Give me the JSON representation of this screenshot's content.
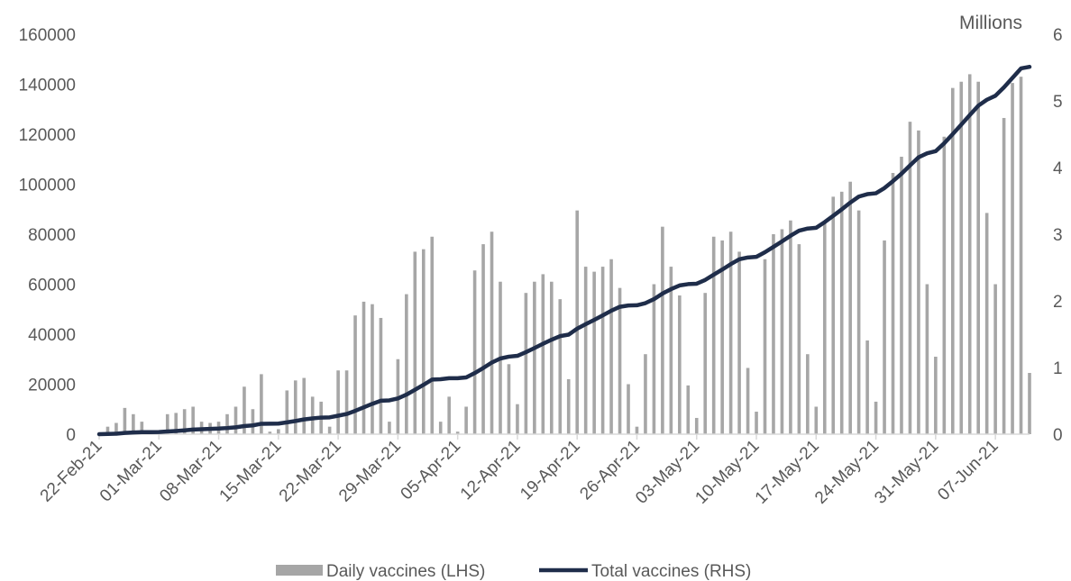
{
  "chart_data": {
    "type": "bar",
    "title": "",
    "xlabel": "",
    "ylabel": "",
    "y2label": "Millions",
    "ylim": [
      0,
      160000
    ],
    "y2lim": [
      0,
      6
    ],
    "yticks": [
      "0",
      "20000",
      "40000",
      "60000",
      "80000",
      "100000",
      "120000",
      "140000",
      "160000"
    ],
    "y2ticks": [
      "0",
      "1",
      "2",
      "3",
      "4",
      "5",
      "6"
    ],
    "xtick_labels": [
      "22-Feb-21",
      "01-Mar-21",
      "08-Mar-21",
      "15-Mar-21",
      "22-Mar-21",
      "29-Mar-21",
      "05-Apr-21",
      "12-Apr-21",
      "19-Apr-21",
      "26-Apr-21",
      "03-May-21",
      "10-May-21",
      "17-May-21",
      "24-May-21",
      "31-May-21",
      "07-Jun-21"
    ],
    "legend_position": "bottom",
    "grid": false,
    "colors": {
      "bar": "#a6a6a6",
      "line": "#1f2d4a",
      "text": "#595959",
      "axis": "#d9d9d9"
    },
    "series": [
      {
        "name": "Daily vaccines (LHS)",
        "type": "bar",
        "axis": "left",
        "start": "22-Feb-21",
        "values": [
          0,
          3000,
          4500,
          10500,
          8000,
          5000,
          0,
          1000,
          8000,
          8500,
          10000,
          11000,
          5000,
          4500,
          5000,
          8000,
          11000,
          19000,
          10000,
          24000,
          1000,
          2000,
          17500,
          21500,
          22500,
          15000,
          13000,
          3000,
          25500,
          25500,
          47500,
          53000,
          52000,
          46500,
          5000,
          30000,
          56000,
          73000,
          74000,
          79000,
          5000,
          15000,
          1000,
          11000,
          65500,
          76000,
          81000,
          61000,
          28000,
          12000,
          56500,
          61000,
          64000,
          61000,
          54000,
          22000,
          89500,
          67000,
          65000,
          67000,
          70000,
          58500,
          20000,
          3000,
          32000,
          60000,
          83000,
          67000,
          55500,
          19500,
          6500,
          56500,
          79000,
          77500,
          81000,
          73000,
          26500,
          9000,
          70000,
          80000,
          82000,
          85500,
          76000,
          32000,
          11000,
          85000,
          95000,
          97000,
          101000,
          89500,
          37500,
          13000,
          77500,
          104500,
          111000,
          125000,
          121500,
          60000,
          31000,
          119000,
          138500,
          141000,
          144000,
          141000,
          88500,
          60000,
          126500,
          140500,
          143000,
          24500
        ]
      },
      {
        "name": "Total vaccines (RHS)",
        "type": "line",
        "axis": "right",
        "start": "22-Feb-21",
        "values": [
          0.0,
          0.003,
          0.007,
          0.018,
          0.026,
          0.031,
          0.031,
          0.032,
          0.04,
          0.048,
          0.058,
          0.069,
          0.074,
          0.079,
          0.084,
          0.092,
          0.103,
          0.122,
          0.132,
          0.156,
          0.157,
          0.159,
          0.177,
          0.198,
          0.221,
          0.236,
          0.249,
          0.252,
          0.277,
          0.303,
          0.35,
          0.403,
          0.455,
          0.502,
          0.507,
          0.537,
          0.593,
          0.666,
          0.74,
          0.819,
          0.824,
          0.839,
          0.84,
          0.851,
          0.917,
          0.993,
          1.074,
          1.135,
          1.163,
          1.175,
          1.231,
          1.292,
          1.356,
          1.417,
          1.471,
          1.493,
          1.583,
          1.65,
          1.715,
          1.782,
          1.852,
          1.911,
          1.931,
          1.934,
          1.966,
          2.026,
          2.109,
          2.176,
          2.231,
          2.251,
          2.257,
          2.314,
          2.393,
          2.47,
          2.551,
          2.624,
          2.651,
          2.66,
          2.73,
          2.81,
          2.892,
          2.977,
          3.053,
          3.085,
          3.096,
          3.181,
          3.276,
          3.373,
          3.474,
          3.564,
          3.601,
          3.614,
          3.692,
          3.796,
          3.907,
          4.032,
          4.154,
          4.214,
          4.245,
          4.364,
          4.502,
          4.643,
          4.787,
          4.928,
          5.017,
          5.077,
          5.203,
          5.344,
          5.487,
          5.511
        ]
      }
    ]
  }
}
